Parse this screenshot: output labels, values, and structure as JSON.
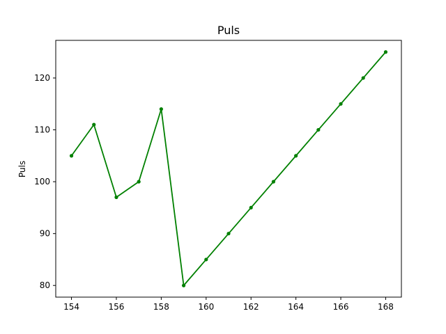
{
  "chart_data": {
    "type": "line",
    "title": "Puls",
    "xlabel": "",
    "ylabel": "Puls",
    "xlim": [
      153.3,
      168.7
    ],
    "ylim": [
      77.75,
      127.25
    ],
    "x_ticks": [
      154,
      156,
      158,
      160,
      162,
      164,
      166,
      168
    ],
    "y_ticks": [
      80,
      90,
      100,
      110,
      120
    ],
    "grid": false,
    "series": [
      {
        "color": "#008000",
        "marker": "circle",
        "x": [
          154,
          155,
          156,
          157,
          158,
          159,
          160,
          161,
          162,
          163,
          164,
          165,
          166,
          167,
          168
        ],
        "y": [
          105,
          111,
          97,
          100,
          114,
          80,
          85,
          90,
          95,
          100,
          105,
          110,
          115,
          120,
          125
        ]
      }
    ]
  }
}
